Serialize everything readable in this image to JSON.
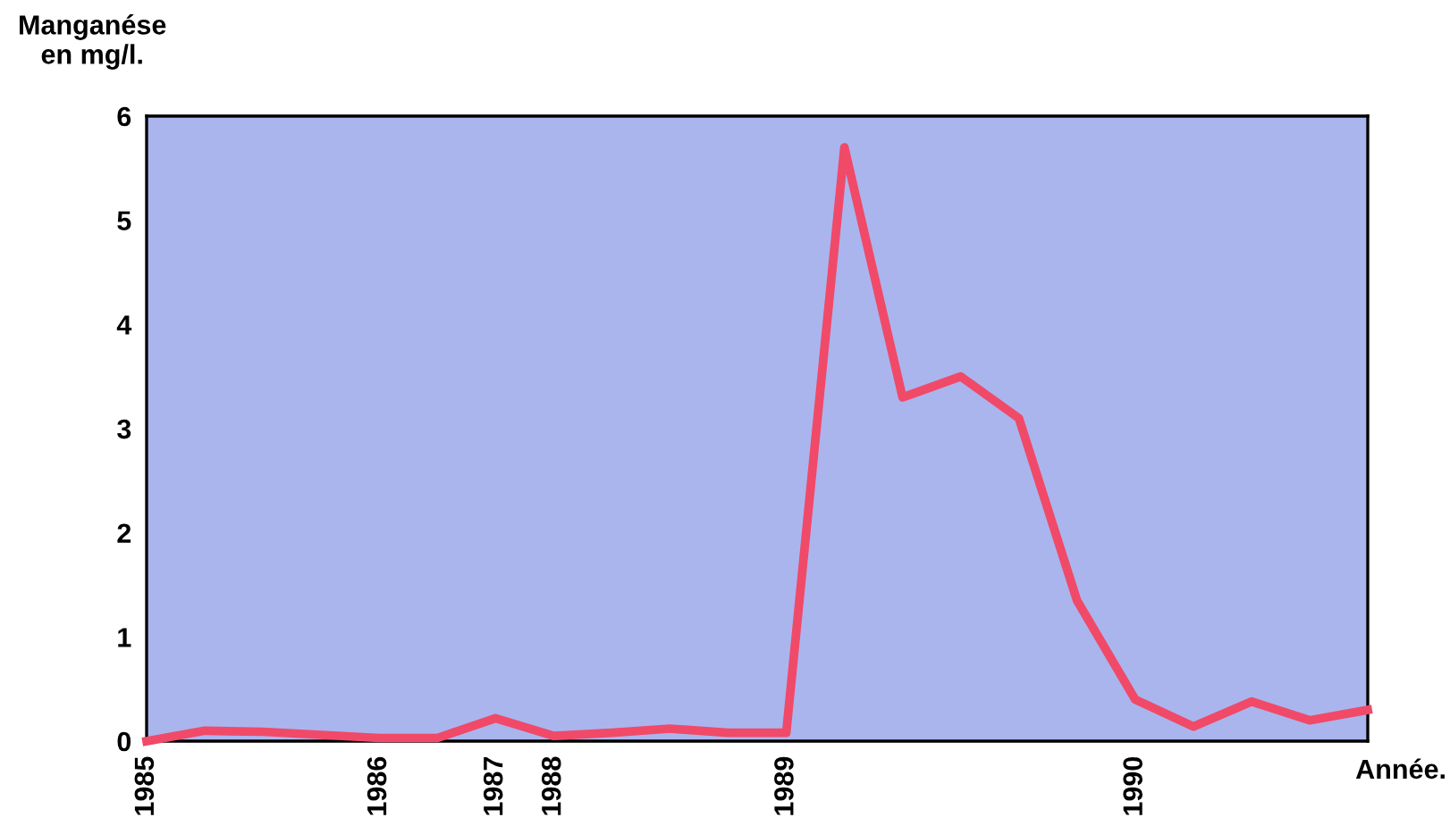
{
  "chart_data": {
    "type": "line",
    "ylabel": "Manganése\nen mg/l.",
    "xlabel": "Année.",
    "categories": [
      "1985",
      null,
      null,
      null,
      "1986",
      null,
      "1987",
      "1988",
      null,
      null,
      null,
      "1989",
      null,
      null,
      null,
      null,
      null,
      "1990",
      null,
      null,
      null,
      null
    ],
    "series": [
      {
        "color": "#f04a68",
        "values": [
          0,
          0.1,
          0.09,
          0.06,
          0.03,
          0.03,
          0.22,
          0.05,
          0.08,
          0.12,
          0.08,
          0.08,
          5.7,
          3.3,
          3.5,
          3.1,
          1.35,
          0.4,
          0.14,
          0.38,
          0.2,
          0.3
        ]
      }
    ],
    "ylim": [
      0,
      6
    ],
    "yticks": [
      0,
      1,
      2,
      3,
      4,
      5,
      6
    ],
    "grid": false,
    "legend": false,
    "marker": "none",
    "line_style": "solid"
  }
}
